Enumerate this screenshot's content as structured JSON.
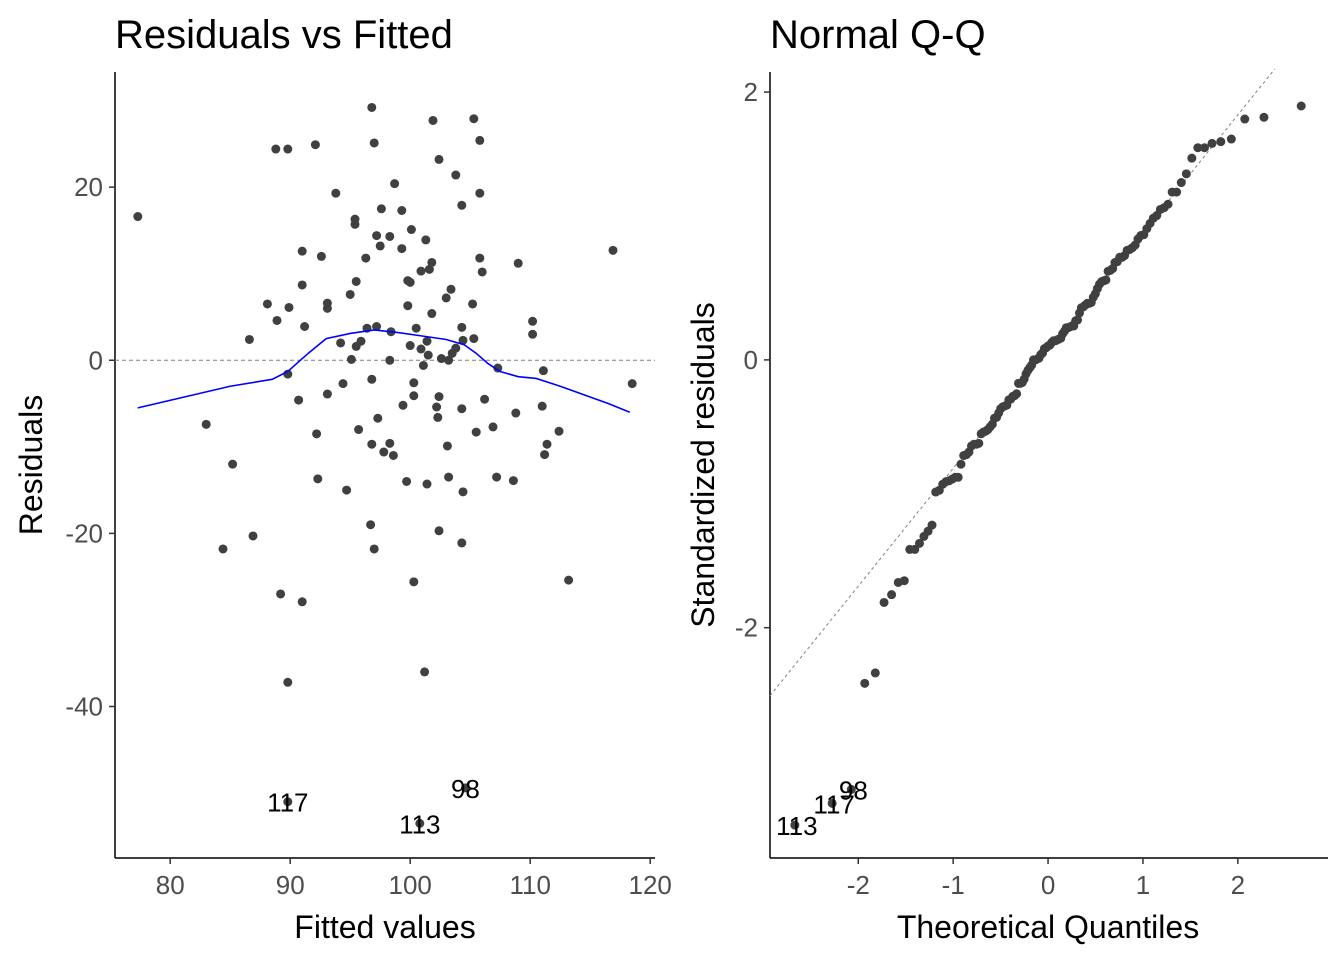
{
  "chart_data": [
    {
      "type": "scatter",
      "title": "Residuals vs Fitted",
      "xlabel": "Fitted values",
      "ylabel": "Residuals",
      "xlim": [
        75.4,
        120.4
      ],
      "ylim": [
        -57.5,
        33.3
      ],
      "xticks": [
        80,
        90,
        100,
        110,
        120
      ],
      "yticks": [
        -40,
        -20,
        0,
        20
      ],
      "reference_line": {
        "type": "horizontal",
        "y": 0,
        "style": "dashed",
        "color": "#808080"
      },
      "smooth_color": "#0000ff",
      "point_color": "#404040",
      "smooth": [
        [
          77.3,
          -5.5
        ],
        [
          81,
          -4.3
        ],
        [
          85,
          -3.0
        ],
        [
          88.5,
          -2.2
        ],
        [
          89.8,
          -1.3
        ],
        [
          91.5,
          0.8
        ],
        [
          93,
          2.5
        ],
        [
          95,
          3.1
        ],
        [
          97,
          3.5
        ],
        [
          99,
          3.2
        ],
        [
          101,
          2.8
        ],
        [
          103,
          2.4
        ],
        [
          104.5,
          1.8
        ],
        [
          105.5,
          0.8
        ],
        [
          106.5,
          -0.4
        ],
        [
          107.5,
          -1.3
        ],
        [
          109,
          -1.9
        ],
        [
          110.5,
          -2.1
        ],
        [
          112.5,
          -3.0
        ],
        [
          114.5,
          -4.0
        ],
        [
          116.5,
          -5.0
        ],
        [
          118.3,
          -6.0
        ]
      ],
      "points": [
        [
          77.3,
          16.6
        ],
        [
          88.8,
          24.4
        ],
        [
          89.8,
          24.4
        ],
        [
          92.1,
          24.9
        ],
        [
          96.8,
          29.2
        ],
        [
          97.0,
          25.1
        ],
        [
          98.7,
          20.4
        ],
        [
          93.8,
          19.3
        ],
        [
          97.6,
          17.5
        ],
        [
          95.4,
          16.3
        ],
        [
          95.4,
          15.7
        ],
        [
          97.2,
          14.4
        ],
        [
          98.3,
          14.3
        ],
        [
          97.5,
          13.2
        ],
        [
          91.0,
          12.6
        ],
        [
          92.6,
          12.0
        ],
        [
          96.3,
          11.8
        ],
        [
          95.5,
          9.1
        ],
        [
          95.0,
          7.6
        ],
        [
          91.0,
          8.7
        ],
        [
          88.1,
          6.5
        ],
        [
          89.9,
          6.1
        ],
        [
          93.1,
          6.6
        ],
        [
          93.1,
          6.0
        ],
        [
          88.9,
          4.6
        ],
        [
          91.2,
          3.9
        ],
        [
          86.6,
          2.4
        ],
        [
          96.4,
          3.7
        ],
        [
          97.2,
          3.9
        ],
        [
          98.4,
          3.3
        ],
        [
          94.2,
          2.0
        ],
        [
          95.5,
          1.6
        ],
        [
          95.9,
          2.2
        ],
        [
          95.1,
          0.1
        ],
        [
          98.3,
          0.0
        ],
        [
          101.9,
          27.7
        ],
        [
          105.3,
          27.9
        ],
        [
          105.8,
          25.4
        ],
        [
          102.4,
          23.2
        ],
        [
          103.8,
          21.4
        ],
        [
          105.8,
          19.3
        ],
        [
          104.3,
          17.9
        ],
        [
          99.3,
          17.3
        ],
        [
          100.1,
          15.1
        ],
        [
          99.3,
          12.9
        ],
        [
          101.3,
          13.9
        ],
        [
          101.8,
          11.3
        ],
        [
          100.9,
          10.3
        ],
        [
          101.6,
          10.5
        ],
        [
          99.8,
          9.2
        ],
        [
          100.0,
          9.0
        ],
        [
          105.8,
          11.8
        ],
        [
          106.0,
          10.2
        ],
        [
          109.0,
          11.2
        ],
        [
          116.9,
          12.7
        ],
        [
          103.4,
          8.2
        ],
        [
          103.0,
          7.2
        ],
        [
          105.2,
          6.5
        ],
        [
          99.8,
          6.3
        ],
        [
          101.8,
          5.4
        ],
        [
          110.2,
          4.5
        ],
        [
          110.2,
          3.0
        ],
        [
          100.5,
          3.7
        ],
        [
          104.3,
          3.8
        ],
        [
          104.4,
          2.3
        ],
        [
          105.3,
          2.5
        ],
        [
          100.0,
          1.7
        ],
        [
          100.9,
          1.3
        ],
        [
          101.5,
          0.6
        ],
        [
          103.5,
          0.8
        ],
        [
          103.8,
          1.4
        ],
        [
          102.6,
          0.2
        ],
        [
          103.2,
          0.0
        ],
        [
          101.4,
          2.2
        ],
        [
          101.1,
          -0.6
        ],
        [
          107.3,
          -0.9
        ],
        [
          111.1,
          -1.2
        ],
        [
          89.8,
          -1.6
        ],
        [
          90.7,
          -4.6
        ],
        [
          93.1,
          -3.9
        ],
        [
          94.4,
          -2.7
        ],
        [
          96.8,
          -2.2
        ],
        [
          83.0,
          -7.4
        ],
        [
          92.2,
          -8.5
        ],
        [
          95.7,
          -8.0
        ],
        [
          97.3,
          -6.7
        ],
        [
          96.8,
          -9.7
        ],
        [
          98.3,
          -9.6
        ],
        [
          97.8,
          -10.6
        ],
        [
          98.6,
          -11.0
        ],
        [
          85.2,
          -12.0
        ],
        [
          92.3,
          -13.7
        ],
        [
          94.7,
          -15.0
        ],
        [
          96.7,
          -19.0
        ],
        [
          97.0,
          -21.8
        ],
        [
          86.9,
          -20.3
        ],
        [
          84.4,
          -21.8
        ],
        [
          89.2,
          -27.0
        ],
        [
          91.0,
          -27.9
        ],
        [
          89.8,
          -37.2
        ],
        [
          100.3,
          -2.6
        ],
        [
          100.3,
          -4.1
        ],
        [
          99.4,
          -5.2
        ],
        [
          102.4,
          -4.2
        ],
        [
          102.2,
          -5.4
        ],
        [
          102.3,
          -6.6
        ],
        [
          104.3,
          -5.6
        ],
        [
          106.2,
          -4.5
        ],
        [
          108.8,
          -6.1
        ],
        [
          111.0,
          -5.3
        ],
        [
          118.5,
          -2.7
        ],
        [
          105.5,
          -8.3
        ],
        [
          106.9,
          -7.7
        ],
        [
          112.4,
          -8.2
        ],
        [
          111.4,
          -9.7
        ],
        [
          111.2,
          -10.9
        ],
        [
          103.1,
          -9.9
        ],
        [
          99.7,
          -14.0
        ],
        [
          101.4,
          -14.3
        ],
        [
          103.2,
          -13.5
        ],
        [
          104.4,
          -15.2
        ],
        [
          107.2,
          -13.5
        ],
        [
          108.6,
          -13.9
        ],
        [
          102.4,
          -19.7
        ],
        [
          104.3,
          -21.1
        ],
        [
          100.3,
          -25.6
        ],
        [
          113.2,
          -25.4
        ],
        [
          101.2,
          -36.0
        ]
      ],
      "labeled_points": [
        {
          "label": "117",
          "x": 89.8,
          "y": -51.0
        },
        {
          "label": "113",
          "x": 100.8,
          "y": -53.5
        },
        {
          "label": "98",
          "x": 104.6,
          "y": -49.4
        }
      ]
    },
    {
      "type": "scatter",
      "title": "Normal Q-Q",
      "xlabel": "Theoretical Quantiles",
      "ylabel": "Standardized residuals",
      "xlim": [
        -2.93,
        2.95
      ],
      "ylim": [
        -3.72,
        2.15
      ],
      "xticks": [
        -2,
        -1,
        0,
        1,
        2
      ],
      "yticks": [
        -2,
        0,
        2
      ],
      "residual_scale": 15.4,
      "sample": "standardized residuals of panel 1 (residual / residual_scale) vs normal quantiles",
      "reference_line": {
        "intercept": 0.07,
        "slope": 0.88,
        "style": "dashed",
        "color": "#808080"
      },
      "point_color": "#404040",
      "labeled_points": [
        "113",
        "117",
        "98"
      ]
    }
  ]
}
